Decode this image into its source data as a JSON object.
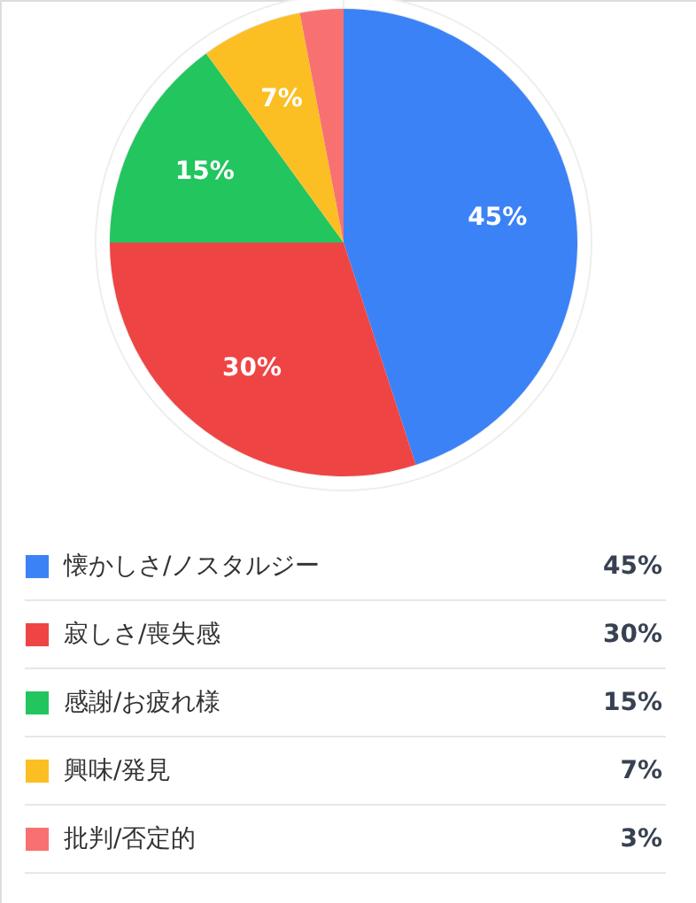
{
  "chart_data": {
    "type": "pie",
    "categories": [
      "懐かしさ/ノスタルジー",
      "寂しさ/喪失感",
      "感謝/お疲れ様",
      "興味/発見",
      "批判/否定的"
    ],
    "values": [
      45,
      30,
      15,
      7,
      3
    ],
    "colors": [
      "#3b82f6",
      "#ef4444",
      "#22c55e",
      "#fbbf24",
      "#f87171"
    ],
    "value_labels": [
      "45%",
      "30%",
      "15%",
      "7%",
      "3%"
    ],
    "legend": "bottom"
  }
}
